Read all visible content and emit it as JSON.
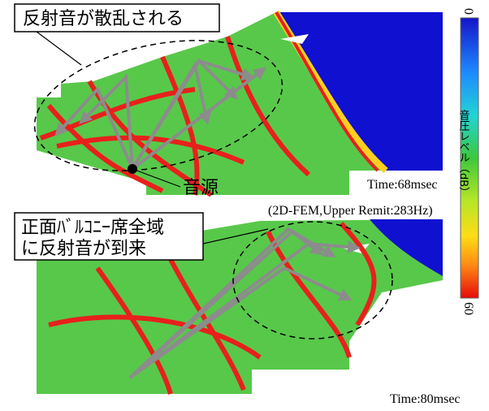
{
  "panels": [
    {
      "callout": "反射音が散乱される",
      "source_label": "音源",
      "time": "Time:68msec",
      "note": "(2D-FEM,Upper Remit:283Hz)"
    },
    {
      "callout_lines": [
        "正面ﾊﾞﾙｺﾆｰ席全域",
        "に反射音が到来"
      ],
      "time": "Time:80msec"
    }
  ],
  "colorbar": {
    "label": "音圧レベル（dB）",
    "ticks": [
      0,
      60
    ]
  }
}
